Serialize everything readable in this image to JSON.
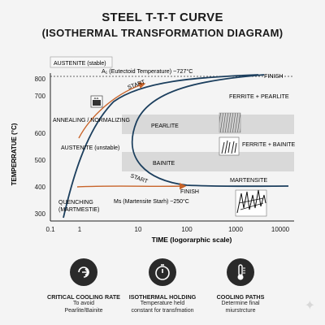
{
  "title_line1": "STEEL T-T-T CURVE",
  "title_line2": "(ISOTHERMAL TRANSFORMATION DIAGRAM)",
  "chart_data": {
    "type": "diagram",
    "xlabel": "TIME (logorarphic scale)",
    "ylabel": "TEMPERRATUE (°C)",
    "x_ticks": [
      "0.1",
      "1",
      "10",
      "100",
      "1000",
      "10000"
    ],
    "y_ticks": [
      "300",
      "400",
      "500",
      "600",
      "700",
      "800"
    ],
    "xlim": [
      0.1,
      10000
    ],
    "ylim": [
      300,
      800
    ],
    "eutectoid_label": "A₁ (Eutectoid Temperature) ~727°C",
    "austenite_stable_label": "AUSTENITE (stable)",
    "austenite_unstable_label": "AUSTENITE (unstable)",
    "annealing_label": "ANNEALING / NORMALIZING",
    "quenching_label_1": "QUENCHING",
    "quenching_label_2": "(MARTMESTIE)",
    "ms_label": "Ms (Martensite Starh) ~250°C",
    "start_label_top": "START",
    "start_label_bottom": "START",
    "finish_label_top": "FINISH",
    "finish_label_bottom": "FINISH",
    "pearlite_band_label": "PEARLITE",
    "bainite_band_label": "BAINITE",
    "ferrite_pearlite_label": "FERRITE + PEARLITE",
    "ferrite_bainite_label": "FERRITE + BAINITE",
    "martensite_label": "MARTENSITE",
    "colors": {
      "curve": "#1c3f5e",
      "cooling_path": "#c8642a",
      "band": "#d8d8d8",
      "text": "#1a1a1a"
    }
  },
  "bottom": [
    {
      "icon": "cooling-rate-icon",
      "title": "CRITICAL COOLING RATE",
      "line1": "To avoid",
      "line2": "Pearlite/Bainite"
    },
    {
      "icon": "timer-icon",
      "title": "ISOTHERMAL HOLDING",
      "line1": "Temperature held",
      "line2": "constant for transfmation"
    },
    {
      "icon": "thermometer-icon",
      "title": "COOLING PATHS",
      "line1": "Determine final",
      "line2": "miurstrcture"
    }
  ]
}
